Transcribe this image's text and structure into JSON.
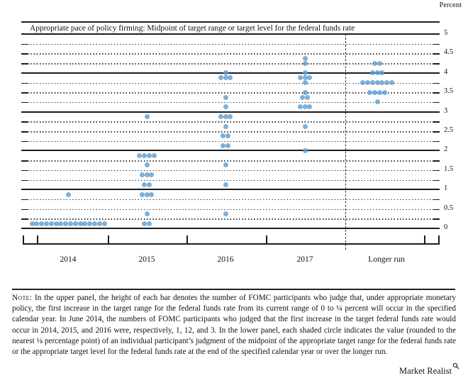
{
  "header": {
    "percent_label": "Percent"
  },
  "chart": {
    "title": "Appropriate pace of policy firming: Midpoint of target range or target level for the federal funds rate",
    "x_labels": [
      "2014",
      "2015",
      "2016",
      "2017",
      "Longer run"
    ],
    "y_tick_labels": [
      "5",
      "4.5",
      "4",
      "3.5",
      "3",
      "2.5",
      "2",
      "1.5",
      "1",
      "0.5",
      "0"
    ]
  },
  "chart_data": {
    "type": "scatter",
    "title": "Appropriate pace of policy firming: Midpoint of target range or target level for the federal funds rate",
    "ylabel": "Percent",
    "ylim": [
      0,
      5
    ],
    "y_grid_step": 0.25,
    "y_label_step": 0.5,
    "grid": "dotted-quarters-solid-integers",
    "legend_position": "none",
    "categories": [
      "2014",
      "2015",
      "2016",
      "2017",
      "Longer run"
    ],
    "dot_color": "#619fcf",
    "series": [
      {
        "name": "2014",
        "dots": [
          {
            "value": 0.125,
            "count": 16
          },
          {
            "value": 0.875,
            "count": 1
          }
        ]
      },
      {
        "name": "2015",
        "dots": [
          {
            "value": 0.125,
            "count": 2
          },
          {
            "value": 0.375,
            "count": 1
          },
          {
            "value": 0.875,
            "count": 3
          },
          {
            "value": 1.125,
            "count": 2
          },
          {
            "value": 1.375,
            "count": 3
          },
          {
            "value": 1.625,
            "count": 1
          },
          {
            "value": 1.875,
            "count": 4
          },
          {
            "value": 2.875,
            "count": 1
          }
        ]
      },
      {
        "name": "2016",
        "dots": [
          {
            "value": 0.375,
            "count": 1
          },
          {
            "value": 1.125,
            "count": 1
          },
          {
            "value": 1.625,
            "count": 1
          },
          {
            "value": 2.125,
            "count": 2
          },
          {
            "value": 2.375,
            "count": 2
          },
          {
            "value": 2.625,
            "count": 1
          },
          {
            "value": 2.875,
            "count": 3
          },
          {
            "value": 3.125,
            "count": 1
          },
          {
            "value": 3.375,
            "count": 1
          },
          {
            "value": 3.875,
            "count": 3
          },
          {
            "value": 4.0,
            "count": 1
          }
        ]
      },
      {
        "name": "2017",
        "dots": [
          {
            "value": 2.0,
            "count": 1
          },
          {
            "value": 2.625,
            "count": 1
          },
          {
            "value": 3.125,
            "count": 3
          },
          {
            "value": 3.375,
            "count": 2
          },
          {
            "value": 3.5,
            "count": 1
          },
          {
            "value": 3.75,
            "count": 1
          },
          {
            "value": 3.875,
            "count": 3
          },
          {
            "value": 4.0,
            "count": 1
          },
          {
            "value": 4.25,
            "count": 1
          },
          {
            "value": 4.375,
            "count": 1
          }
        ]
      },
      {
        "name": "Longer run",
        "dots": [
          {
            "value": 3.25,
            "count": 1
          },
          {
            "value": 3.5,
            "count": 4
          },
          {
            "value": 3.75,
            "count": 7
          },
          {
            "value": 4.0,
            "count": 3
          },
          {
            "value": 4.25,
            "count": 2
          }
        ]
      }
    ]
  },
  "note": {
    "label": "Note:",
    "text": "In the upper panel, the height of each bar denotes the number of FOMC participants who judge that, under appropriate monetary policy, the first increase in the target range for the federal funds rate from its current range of 0 to ¼ percent will occur in the specified calendar year. In June 2014, the numbers of FOMC participants who judged that the first increase in the target federal funds rate would occur in 2014, 2015, and 2016 were, respectively, 1, 12, and 3. In the lower panel, each shaded circle indicates the value (rounded to the nearest ⅛ percentage point) of an individual participant’s judgment of the midpoint of the appropriate target range for the federal funds rate or the appropriate target level for the federal funds rate at the end of the specified calendar year or over the longer run."
  },
  "brand": {
    "name": "Market Realist"
  }
}
